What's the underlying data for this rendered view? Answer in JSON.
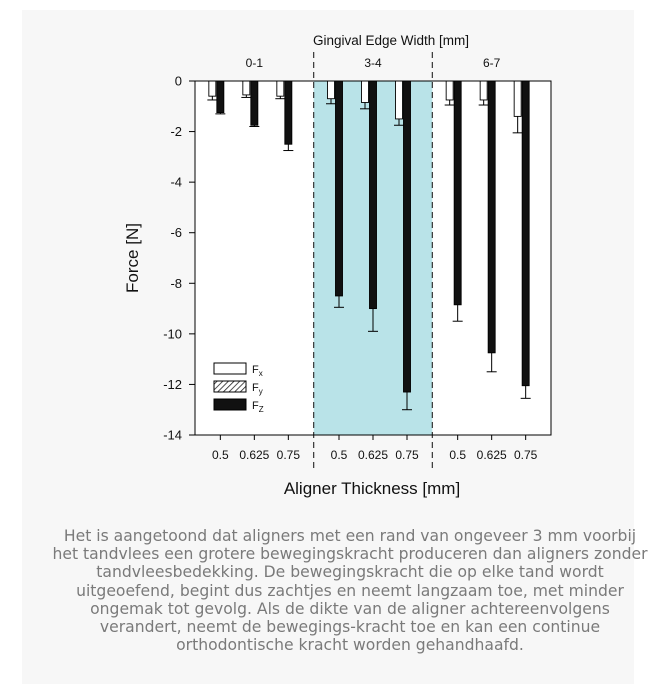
{
  "chart_data": {
    "type": "bar",
    "top_title": "Gingival Edge Width [mm]",
    "xlabel": "Aligner Thickness [mm]",
    "ylabel": "Force [N]",
    "ylim": [
      -14,
      0
    ],
    "yticks": [
      0,
      -2,
      -4,
      -6,
      -8,
      -10,
      -12,
      -14
    ],
    "groups": [
      {
        "label": "0-1",
        "highlight": false,
        "thicknesses": [
          "0.5",
          "0.625",
          "0.75"
        ]
      },
      {
        "label": "3-4",
        "highlight": true,
        "thicknesses": [
          "0.5",
          "0.625",
          "0.75"
        ]
      },
      {
        "label": "6-7",
        "highlight": false,
        "thicknesses": [
          "0.5",
          "0.625",
          "0.75"
        ]
      }
    ],
    "series": [
      {
        "name": "F_x",
        "base": "F",
        "sub": "x",
        "pattern": "white",
        "values": [
          -0.6,
          -0.55,
          -0.6,
          -0.7,
          -0.85,
          -1.5,
          -0.75,
          -0.75,
          -1.4
        ],
        "errors": [
          0.15,
          0.1,
          0.1,
          0.2,
          0.25,
          0.25,
          0.2,
          0.2,
          0.65
        ]
      },
      {
        "name": "F_y",
        "base": "F",
        "sub": "y",
        "pattern": "hatch",
        "values": [
          -0.05,
          -0.05,
          -0.05,
          -0.05,
          -0.05,
          -0.05,
          -0.05,
          -0.05,
          -0.05
        ],
        "errors": [
          0,
          0,
          0,
          0,
          0,
          0,
          0,
          0,
          0
        ]
      },
      {
        "name": "F_z",
        "base": "F",
        "sub": "Z",
        "pattern": "black",
        "values": [
          -1.25,
          -1.75,
          -2.5,
          -8.5,
          -9.0,
          -12.3,
          -8.85,
          -10.75,
          -12.05
        ],
        "errors": [
          0.05,
          0.05,
          0.25,
          0.45,
          0.9,
          0.7,
          0.65,
          0.75,
          0.5
        ]
      }
    ],
    "highlight_color": "#b9e3e8",
    "legend_position": "bottom-left"
  },
  "caption": "Het is aangetoond dat aligners met een rand van ongeveer 3 mm voorbij het tandvlees een grotere bewegingskracht produceren dan aligners zonder tandvleesbedekking. De bewegingskracht die op elke tand wordt uitgeoefend, begint dus zachtjes en neemt langzaam toe, met minder ongemak tot gevolg. Als de dikte van de aligner achtereenvolgens verandert, neemt de bewegings-kracht toe en kan een continue orthodontische kracht worden gehandhaafd."
}
